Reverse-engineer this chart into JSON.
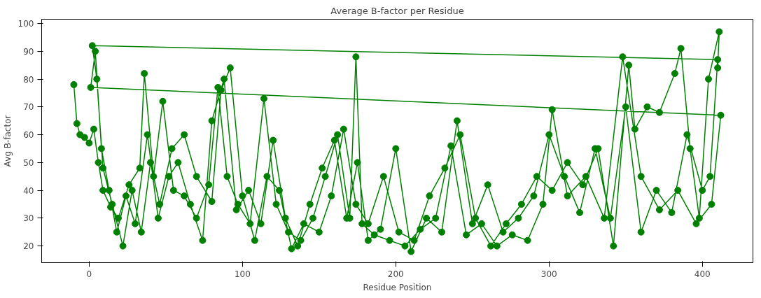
{
  "chart_data": {
    "type": "line",
    "title": "Average B-factor per Residue",
    "xlabel": "Residue Position",
    "ylabel": "Avg B-factor",
    "xlim": [
      -31,
      433
    ],
    "ylim": [
      14,
      101.5
    ],
    "xticks": [
      0,
      100,
      200,
      300,
      400
    ],
    "yticks": [
      20,
      30,
      40,
      50,
      60,
      70,
      80,
      90,
      100
    ],
    "grid": false,
    "marker": "circle",
    "line_style": "solid",
    "series": [
      {
        "color": "#008000",
        "x": [
          -10,
          -8,
          -6,
          -3,
          0,
          3,
          6,
          9,
          14,
          19,
          26,
          33,
          36,
          42,
          48,
          55,
          62,
          70,
          78,
          84,
          90,
          97,
          105,
          114,
          122,
          130,
          138,
          146,
          154,
          162,
          170,
          174,
          178,
          186,
          196,
          206,
          216,
          226,
          236,
          246,
          256,
          266,
          276,
          286,
          296,
          302,
          312,
          324,
          336,
          348,
          360,
          372,
          384,
          396,
          406,
          412,
          1,
          4,
          8,
          13,
          18,
          24,
          30,
          38,
          45,
          52,
          58,
          66,
          74,
          80,
          88,
          96,
          104,
          112,
          120,
          128,
          136,
          144,
          152,
          160,
          168,
          175,
          182,
          190,
          200,
          210,
          220,
          230,
          240,
          250,
          260,
          270,
          280,
          290,
          300,
          310,
          320,
          330,
          340,
          350,
          360,
          370,
          380,
          390,
          400,
          405,
          410,
          2,
          5,
          9,
          15,
          22,
          28,
          34,
          40,
          46,
          54,
          62,
          70,
          80,
          86,
          92,
          100,
          108,
          116,
          124,
          132,
          140,
          150,
          158,
          166,
          174,
          182,
          192,
          202,
          212,
          222,
          232,
          242,
          252,
          262,
          272,
          282,
          292,
          302,
          312,
          322,
          332,
          342,
          352,
          356,
          364,
          372,
          382,
          386,
          392,
          398,
          404,
          411,
          410
        ],
        "values": [
          78,
          64,
          60,
          59,
          57,
          62,
          50,
          40,
          34,
          30,
          42,
          48,
          82,
          45,
          72,
          40,
          38,
          30,
          42,
          77,
          45,
          35,
          28,
          73,
          35,
          25,
          22,
          30,
          45,
          60,
          30,
          88,
          28,
          24,
          22,
          20,
          26,
          30,
          56,
          24,
          28,
          20,
          24,
          22,
          35,
          69,
          38,
          45,
          30,
          88,
          45,
          33,
          40,
          28,
          35,
          67,
          77,
          90,
          55,
          40,
          25,
          38,
          28,
          60,
          30,
          45,
          50,
          35,
          22,
          65,
          80,
          33,
          40,
          28,
          58,
          30,
          20,
          35,
          48,
          58,
          30,
          50,
          22,
          26,
          55,
          18,
          30,
          25,
          65,
          28,
          42,
          25,
          30,
          38,
          60,
          45,
          32,
          55,
          30,
          70,
          25,
          40,
          32,
          60,
          40,
          45,
          87,
          92,
          80,
          48,
          35,
          20,
          40,
          25,
          50,
          35,
          55,
          60,
          45,
          36,
          76,
          84,
          38,
          22,
          45,
          40,
          19,
          28,
          25,
          38,
          62,
          35,
          28,
          45,
          25,
          22,
          38,
          48,
          60,
          30,
          20,
          28,
          35,
          45,
          40,
          50,
          42,
          55,
          20,
          85,
          62,
          70,
          68,
          82,
          91,
          55,
          30,
          80,
          97,
          84
        ]
      }
    ]
  }
}
